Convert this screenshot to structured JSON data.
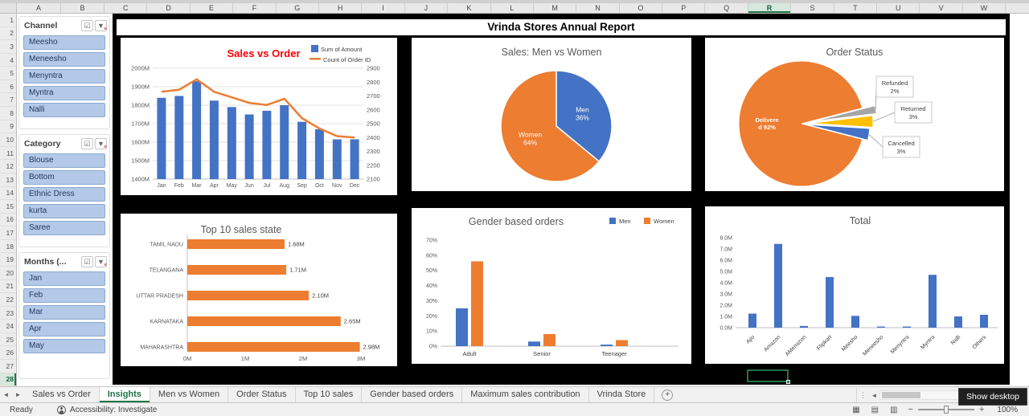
{
  "grid": {
    "columns": [
      "A",
      "B",
      "C",
      "D",
      "E",
      "F",
      "G",
      "H",
      "I",
      "J",
      "K",
      "L",
      "M",
      "N",
      "O",
      "P",
      "Q",
      "R",
      "S",
      "T",
      "U",
      "V",
      "W"
    ],
    "selected_column": "R",
    "row_count": 28,
    "selected_row": 28
  },
  "dashboard": {
    "title": "Vrinda Stores Annual Report"
  },
  "slicers": [
    {
      "title": "Channel",
      "items": [
        "Meesho",
        "Meneesho",
        "Menyntra",
        "Myntra",
        "Nalli"
      ]
    },
    {
      "title": "Category",
      "items": [
        "Blouse",
        "Bottom",
        "Ethnic Dress",
        "kurta",
        "Saree"
      ]
    },
    {
      "title": "Months (...",
      "items": [
        "Jan",
        "Feb",
        "Mar",
        "Apr",
        "May"
      ]
    }
  ],
  "chart_data": [
    {
      "id": "sales-vs-order",
      "type": "combo",
      "title": "Sales vs Order",
      "title_color": "#ff0000",
      "categories": [
        "Jan",
        "Feb",
        "Mar",
        "Apr",
        "May",
        "Jun",
        "Jul",
        "Aug",
        "Sep",
        "Oct",
        "Nov",
        "Dec"
      ],
      "series": [
        {
          "name": "Sum of Amount",
          "chart": "bar",
          "color": "#4472c4",
          "axis": "left",
          "values": [
            1840,
            1850,
            1930,
            1825,
            1790,
            1750,
            1770,
            1800,
            1710,
            1670,
            1615,
            1615
          ]
        },
        {
          "name": "Count of Order ID",
          "chart": "line",
          "color": "#ed7d31",
          "axis": "right",
          "values": [
            2730,
            2745,
            2820,
            2730,
            2690,
            2650,
            2635,
            2680,
            2540,
            2465,
            2410,
            2400
          ]
        }
      ],
      "left_axis": {
        "min": 1400,
        "max": 2000,
        "step": 100,
        "suffix": "M"
      },
      "right_axis": {
        "min": 2100,
        "max": 2900,
        "step": 100
      }
    },
    {
      "id": "sales-men-vs-women",
      "type": "pie",
      "title": "Sales: Men vs Women",
      "slices": [
        {
          "label": "Men",
          "pct": 36,
          "color": "#4472c4"
        },
        {
          "label": "Women",
          "pct": 64,
          "color": "#ed7d31"
        }
      ]
    },
    {
      "id": "order-status",
      "type": "pie-callout",
      "title": "Order Status",
      "slices": [
        {
          "label": "Refunded",
          "pct": 2,
          "color": "#a5a5a5"
        },
        {
          "label": "Returned",
          "pct": 3,
          "color": "#ffc000"
        },
        {
          "label": "Cancelled",
          "pct": 3,
          "color": "#4472c4"
        },
        {
          "label": "Delivered",
          "pct": 92,
          "color": "#ed7d31",
          "label_lines": [
            "Delivere",
            "d 92%"
          ]
        }
      ]
    },
    {
      "id": "top-10-sales-state",
      "type": "hbar",
      "title": "Top 10 sales state",
      "categories": [
        "TAMIL NADU",
        "TELANGANA",
        "UTTAR PRADESH",
        "KARNATAKA",
        "MAHARASHTRA"
      ],
      "values": [
        1.68,
        1.71,
        2.1,
        2.65,
        2.98
      ],
      "labels": [
        "1.68M",
        "1.71M",
        "2.10M",
        "2.65M",
        "2.98M"
      ],
      "color": "#ed7d31",
      "x_ticks": [
        "0M",
        "1M",
        "2M",
        "3M"
      ]
    },
    {
      "id": "gender-based-orders",
      "type": "column-group",
      "title": "Gender based orders",
      "categories": [
        "Adult",
        "Senior",
        "Teenager"
      ],
      "series": [
        {
          "name": "Men",
          "color": "#4472c4",
          "values": [
            25,
            3,
            1
          ]
        },
        {
          "name": "Women",
          "color": "#ed7d31",
          "values": [
            56,
            8,
            4
          ]
        }
      ],
      "y_ticks": [
        "0%",
        "10%",
        "20%",
        "30%",
        "40%",
        "50%",
        "60%",
        "70%"
      ],
      "ymax": 70
    },
    {
      "id": "total",
      "type": "column",
      "title": "Total",
      "categories": [
        "Ajio",
        "Amazon",
        "AMenazon",
        "Flipkart",
        "Meesho",
        "Meneesho",
        "Menyntra",
        "Myntra",
        "Nalli",
        "Others"
      ],
      "values": [
        1.25,
        7.45,
        0.15,
        4.5,
        1.05,
        0.1,
        0.1,
        4.7,
        1.0,
        1.15
      ],
      "color": "#4472c4",
      "y_ticks": [
        "8.0M",
        "7.0M",
        "6.0M",
        "5.0M",
        "4.0M",
        "3.0M",
        "2.0M",
        "1.0M",
        "0.0M"
      ],
      "ymax": 8
    }
  ],
  "tabs": {
    "items": [
      {
        "label": "Sales vs Order",
        "active": false
      },
      {
        "label": "Insights",
        "active": true
      },
      {
        "label": "Men vs Women",
        "active": false
      },
      {
        "label": "Order Status",
        "active": false
      },
      {
        "label": "Top 10 sales",
        "active": false
      },
      {
        "label": "Gender based orders",
        "active": false
      },
      {
        "label": "Maximum sales contribution",
        "active": false
      },
      {
        "label": "Vrinda Store",
        "active": false
      }
    ],
    "add_label": "+"
  },
  "status": {
    "ready": "Ready",
    "accessibility": "Accessibility: Investigate",
    "zoom": "100%"
  },
  "tooltip": {
    "text": "Show desktop"
  }
}
